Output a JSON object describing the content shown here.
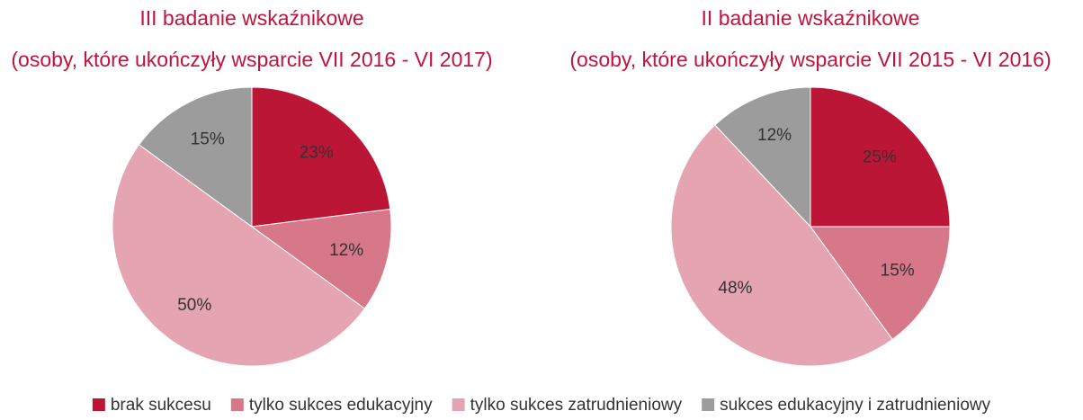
{
  "chart_data": [
    {
      "type": "pie",
      "title": "III badanie wskaźnikowe",
      "subtitle": "(osoby, które ukończyły wsparcie VII 2016 - VI 2017)",
      "categories": [
        "brak sukcesu",
        "tylko sukces edukacyjny",
        "tylko sukces zatrudnieniowy",
        "sukces edukacyjny i zatrudnieniowy"
      ],
      "values": [
        23,
        12,
        50,
        15
      ],
      "value_labels": [
        "23%",
        "12%",
        "50%",
        "15%"
      ],
      "colors": [
        "#bb1636",
        "#d6778a",
        "#e4a4b1",
        "#9c9c9c"
      ],
      "legend": "bottom"
    },
    {
      "type": "pie",
      "title": "II badanie wskaźnikowe",
      "subtitle": "(osoby, które ukończyły wsparcie VII 2015 - VI 2016)",
      "categories": [
        "brak sukcesu",
        "tylko sukces edukacyjny",
        "tylko sukces zatrudnieniowy",
        "sukces edukacyjny i zatrudnieniowy"
      ],
      "values": [
        25,
        15,
        48,
        12
      ],
      "value_labels": [
        "25%",
        "15%",
        "48%",
        "12%"
      ],
      "colors": [
        "#bb1636",
        "#d6778a",
        "#e4a4b1",
        "#9c9c9c"
      ],
      "legend": "bottom"
    }
  ]
}
